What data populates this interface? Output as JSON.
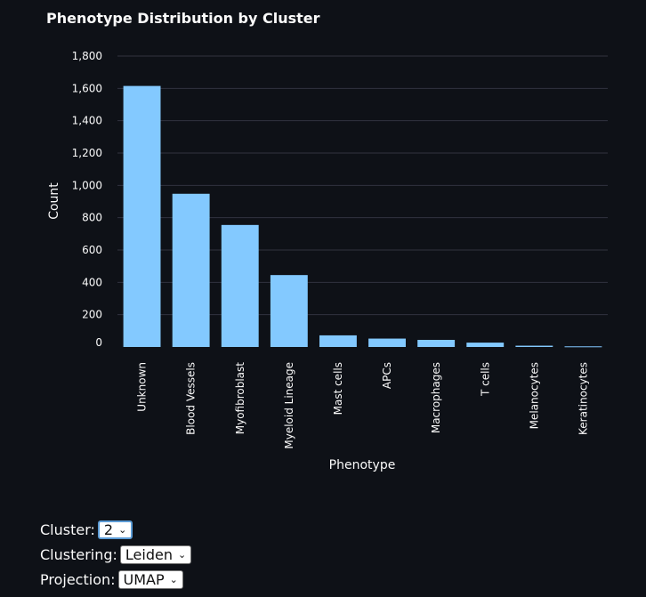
{
  "chart_data": {
    "type": "bar",
    "title": "Phenotype Distribution by Cluster",
    "xlabel": "Phenotype",
    "ylabel": "Count",
    "categories": [
      "Unknown",
      "Blood Vessels",
      "Myofibroblast",
      "Myeloid Lineage",
      "Mast cells",
      "APCs",
      "Macrophages",
      "T cells",
      "Melanocytes",
      "Keratinocytes"
    ],
    "values": [
      1615,
      948,
      755,
      445,
      72,
      52,
      44,
      27,
      8,
      4
    ],
    "ylim": [
      0,
      1800
    ],
    "yticks": [
      0,
      200,
      400,
      600,
      800,
      1000,
      1200,
      1400,
      1600,
      1800
    ],
    "ytick_labels": [
      "0",
      "200",
      "400",
      "600",
      "800",
      "1,000",
      "1,200",
      "1,400",
      "1,600",
      "1,800"
    ],
    "grid": true,
    "bar_color": "#83c9ff"
  },
  "controls": {
    "cluster": {
      "label": "Cluster:",
      "value": "2"
    },
    "clustering": {
      "label": "Clustering:",
      "value": "Leiden"
    },
    "projection": {
      "label": "Projection:",
      "value": "UMAP"
    }
  },
  "colors": {
    "background": "#0e1117",
    "grid": "#31333f",
    "text": "#fafafa"
  }
}
